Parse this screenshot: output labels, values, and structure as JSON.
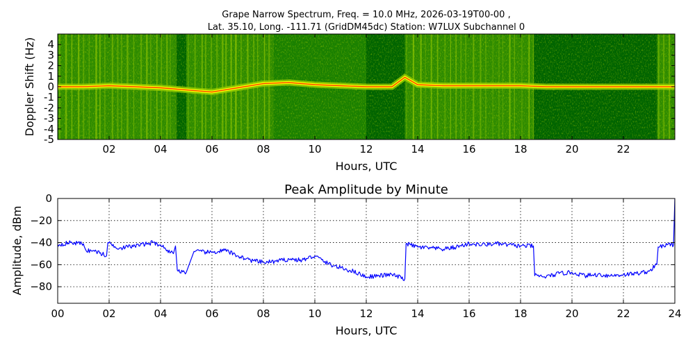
{
  "chart_data": [
    {
      "type": "heatmap",
      "title_line1": "Grape Narrow Spectrum, Freq. = 10.0 MHz, 2026-03-19T00-00 ,",
      "title_line2": "Lat.  35.10, Long. -111.71 (GridDM45dc) Station: W7LUX Subchannel 0",
      "xlabel": "Hours, UTC",
      "ylabel": "Doppler Shift (Hz)",
      "xlim": [
        0,
        24
      ],
      "ylim": [
        -5,
        5
      ],
      "xtick_values": [
        2,
        4,
        6,
        8,
        10,
        12,
        14,
        16,
        18,
        20,
        22
      ],
      "xtick_labels": [
        "02",
        "04",
        "06",
        "08",
        "10",
        "12",
        "14",
        "16",
        "18",
        "20",
        "22"
      ],
      "ytick_values": [
        4,
        3,
        2,
        1,
        0,
        -1,
        -2,
        -3,
        -4,
        -5
      ],
      "ytick_labels": [
        "4",
        "3",
        "2",
        "1",
        "0",
        "-1",
        "-2",
        "-3",
        "-4",
        "-5"
      ],
      "colormap": [
        "#006400",
        "#2e8b00",
        "#9acd00",
        "#ffff00",
        "#ff3000"
      ],
      "background_color": "#1a8000",
      "noisy_segments_hours": [
        [
          0.0,
          4.6
        ],
        [
          5.0,
          8.4
        ],
        [
          13.5,
          18.5
        ],
        [
          23.3,
          24.0
        ]
      ],
      "dark_segments_hours": [
        [
          4.6,
          5.0
        ],
        [
          12.0,
          13.5
        ],
        [
          18.5,
          23.3
        ]
      ],
      "carrier_doppler_hz": {
        "x": [
          0,
          1,
          2,
          3,
          4,
          5,
          6,
          7,
          8,
          9,
          10,
          11,
          12,
          13,
          13.5,
          14,
          15,
          16,
          17,
          18,
          19,
          20,
          21,
          22,
          23,
          24
        ],
        "y": [
          0.0,
          0.0,
          0.1,
          0.0,
          -0.1,
          -0.3,
          -0.5,
          -0.1,
          0.3,
          0.4,
          0.2,
          0.1,
          0.0,
          0.0,
          0.9,
          0.2,
          0.1,
          0.1,
          0.1,
          0.1,
          0.0,
          0.0,
          0.0,
          0.0,
          0.0,
          0.0
        ]
      }
    },
    {
      "type": "line",
      "title": "Peak Amplitude by Minute",
      "xlabel": "Hours, UTC",
      "ylabel": "Amplitude, dBm",
      "xlim": [
        0,
        24
      ],
      "ylim": [
        -95,
        0
      ],
      "grid": true,
      "line_color": "#0000ff",
      "xtick_values": [
        0,
        2,
        4,
        6,
        8,
        10,
        12,
        14,
        16,
        18,
        20,
        22,
        24
      ],
      "xtick_labels": [
        "00",
        "02",
        "04",
        "06",
        "08",
        "10",
        "12",
        "14",
        "16",
        "18",
        "20",
        "22",
        "24"
      ],
      "ytick_values": [
        0,
        -20,
        -40,
        -60,
        -80
      ],
      "ytick_labels": [
        "0",
        "−20",
        "−40",
        "−60",
        "−80"
      ],
      "series": [
        {
          "x": [
            0,
            0.5,
            1.0,
            1.1,
            1.5,
            1.9,
            1.95,
            2.4,
            3.0,
            3.7,
            4.0,
            4.2,
            4.5,
            4.58,
            4.65,
            5.0,
            5.3,
            6.0,
            6.5,
            7.0,
            7.5,
            8.0,
            8.5,
            9.0,
            9.5,
            10.0,
            10.5,
            11.0,
            11.5,
            12.0,
            12.5,
            13.0,
            13.5,
            13.55,
            14.0,
            14.5,
            15.0,
            15.5,
            16.0,
            16.5,
            17.0,
            17.5,
            18.0,
            18.5,
            18.55,
            19.0,
            19.5,
            20.0,
            20.5,
            21.0,
            21.5,
            22.0,
            22.5,
            23.0,
            23.3,
            23.35,
            23.7,
            23.95,
            24.0
          ],
          "y": [
            -42,
            -40,
            -41,
            -47,
            -48,
            -52,
            -40,
            -45,
            -43,
            -40,
            -42,
            -46,
            -50,
            -43,
            -65,
            -67,
            -48,
            -49,
            -47,
            -52,
            -56,
            -58,
            -57,
            -55,
            -56,
            -52,
            -59,
            -63,
            -66,
            -71,
            -70,
            -69,
            -73,
            -41,
            -44,
            -45,
            -46,
            -44,
            -41,
            -42,
            -41,
            -42,
            -43,
            -43,
            -70,
            -71,
            -68,
            -67,
            -70,
            -69,
            -70,
            -69,
            -68,
            -66,
            -60,
            -44,
            -42,
            -42,
            0
          ]
        }
      ]
    }
  ]
}
